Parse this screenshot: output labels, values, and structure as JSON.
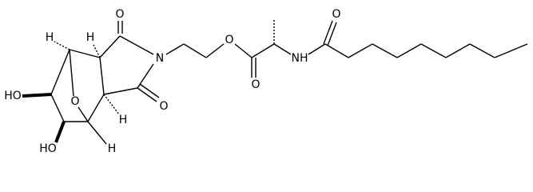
{
  "atoms": {
    "h1": "H",
    "h2": "H",
    "o1": "O",
    "n1": "N",
    "o2": "O",
    "o3": "O",
    "nh": "NH",
    "o4": "O",
    "o5": "O",
    "ho1": "HO",
    "o6": "O",
    "h3": "H",
    "ho2": "HO",
    "h4": "H"
  }
}
